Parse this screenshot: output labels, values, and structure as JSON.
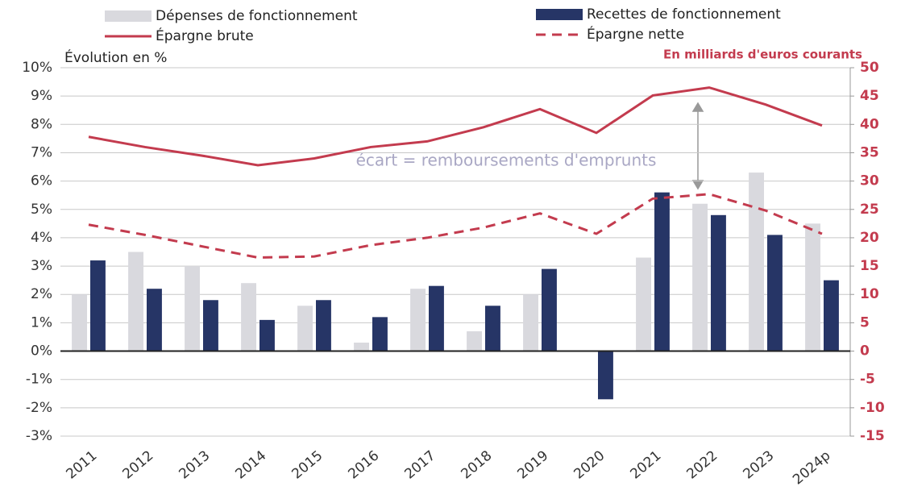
{
  "chart_data": {
    "type": "bar",
    "annotations": [
      "Évolution en %",
      "En milliards d'euros courants",
      "écart = remboursements d'emprunts"
    ],
    "categories": [
      "2011",
      "2012",
      "2013",
      "2014",
      "2015",
      "2016",
      "2017",
      "2018",
      "2019",
      "2020",
      "2021",
      "2022",
      "2023",
      "2024p"
    ],
    "series": [
      {
        "name": "Dépenses de fonctionnement",
        "type": "bar",
        "color": "#d9d9de",
        "values": [
          2.0,
          3.5,
          3.0,
          2.4,
          1.6,
          0.3,
          2.2,
          0.7,
          2.0,
          0,
          3.3,
          5.2,
          6.3,
          4.5
        ]
      },
      {
        "name": "Recettes de fonctionnement",
        "type": "bar",
        "color": "#263566",
        "values": [
          3.2,
          2.2,
          1.8,
          1.1,
          1.8,
          1.2,
          2.3,
          1.6,
          2.9,
          -1.7,
          5.6,
          4.8,
          4.1,
          2.5
        ]
      },
      {
        "name": "Épargne brute",
        "type": "line",
        "axis": "y2",
        "color": "#c33b4e",
        "dashed": false,
        "values": [
          37.8,
          36,
          34.5,
          32.8,
          34,
          36,
          37,
          39.5,
          42.7,
          38.5,
          45.1,
          46.5,
          43.5,
          39.8
        ]
      },
      {
        "name": "Épargne nette",
        "type": "line",
        "axis": "y2",
        "color": "#c33b4e",
        "dashed": true,
        "values": [
          22.3,
          20.5,
          18.5,
          16.5,
          16.7,
          18.7,
          20,
          21.8,
          24.3,
          20.7,
          26.9,
          27.7,
          24.8,
          20.7
        ]
      }
    ],
    "ylim": [
      -3,
      10
    ],
    "yticks": [
      {
        "value": -3,
        "label": "-3%"
      },
      {
        "value": -2,
        "label": "-2%"
      },
      {
        "value": -1,
        "label": "-1%"
      },
      {
        "value": 0,
        "label": "0%"
      },
      {
        "value": 1,
        "label": "1%"
      },
      {
        "value": 2,
        "label": "2%"
      },
      {
        "value": 3,
        "label": "3%"
      },
      {
        "value": 4,
        "label": "4%"
      },
      {
        "value": 5,
        "label": "5%"
      },
      {
        "value": 6,
        "label": "6%"
      },
      {
        "value": 7,
        "label": "7%"
      },
      {
        "value": 8,
        "label": "8%"
      },
      {
        "value": 9,
        "label": "9%"
      },
      {
        "value": 10,
        "label": "10%"
      }
    ],
    "y2lim": [
      -15,
      50
    ],
    "y2ticks": [
      -15,
      -10,
      -5,
      0,
      5,
      10,
      15,
      20,
      25,
      30,
      35,
      40,
      45,
      50
    ],
    "grid": true
  }
}
